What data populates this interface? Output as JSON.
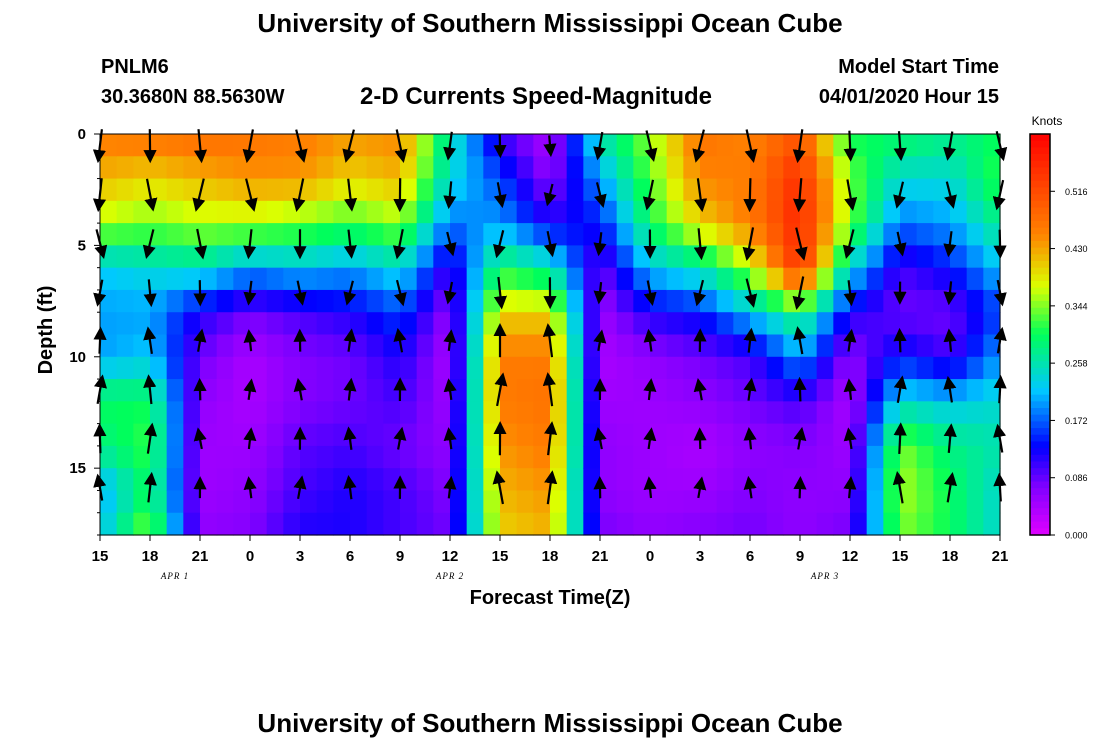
{
  "header": {
    "title": "University of Southern Mississippi Ocean Cube",
    "station_id": "PNLM6",
    "coordinates": "30.3680N 88.5630W",
    "plot_title": "2-D Currents Speed-Magnitude",
    "model_label": "Model Start Time",
    "model_time": "04/01/2020 Hour 15"
  },
  "footer": {
    "title": "University of Southern Mississippi Ocean Cube"
  },
  "chart_data": {
    "type": "heatmap",
    "title": "2-D Currents Speed-Magnitude",
    "xlabel": "Forecast Time(Z)",
    "ylabel": "Depth (ft)",
    "x_tick_labels": [
      "15",
      "18",
      "21",
      "0",
      "3",
      "6",
      "9",
      "12",
      "15",
      "18",
      "21",
      "0",
      "3",
      "6",
      "9",
      "12",
      "15",
      "18",
      "21"
    ],
    "x_range_hours": [
      0,
      54
    ],
    "date_labels": [
      {
        "label": "APR 1",
        "hour": 4.5
      },
      {
        "label": "APR 2",
        "hour": 21
      },
      {
        "label": "APR 3",
        "hour": 43.5
      }
    ],
    "y_ticks": [
      0,
      5,
      10,
      15
    ],
    "ylim": [
      0,
      18
    ],
    "y_inverted": true,
    "colorbar": {
      "title": "Knots",
      "ticks": [
        "0.516",
        "0.430",
        "0.344",
        "0.258",
        "0.172",
        "0.086",
        "0.000"
      ],
      "min": 0.0,
      "max": 0.602
    },
    "grid": {
      "columns": 54,
      "rows": 18
    },
    "speed_anchors": {
      "hours": [
        0,
        3,
        6,
        9,
        12,
        15,
        18,
        21,
        24,
        27,
        30,
        33,
        36,
        39,
        42,
        45,
        48,
        51,
        54
      ],
      "depths_ft": [
        0,
        2,
        4,
        6,
        8,
        10,
        12,
        14,
        16,
        18
      ],
      "values_knots": [
        [
          0.46,
          0.42,
          0.36,
          0.22,
          0.2,
          0.2,
          0.3,
          0.28,
          0.2,
          0.22,
          0.26
        ],
        [
          0.47,
          0.4,
          0.34,
          0.24,
          0.2,
          0.22,
          0.3,
          0.32,
          0.3,
          0.35,
          0.33
        ],
        [
          0.48,
          0.42,
          0.36,
          0.25,
          0.12,
          0.08,
          0.06,
          0.05,
          0.05,
          0.06,
          0.06
        ],
        [
          0.47,
          0.44,
          0.36,
          0.2,
          0.08,
          0.04,
          0.04,
          0.05,
          0.06,
          0.07,
          0.08
        ],
        [
          0.46,
          0.44,
          0.34,
          0.22,
          0.1,
          0.07,
          0.07,
          0.09,
          0.1,
          0.12,
          0.12
        ],
        [
          0.44,
          0.4,
          0.32,
          0.2,
          0.12,
          0.08,
          0.08,
          0.1,
          0.12,
          0.12,
          0.1
        ],
        [
          0.45,
          0.42,
          0.35,
          0.24,
          0.16,
          0.12,
          0.1,
          0.08,
          0.1,
          0.1,
          0.09
        ],
        [
          0.26,
          0.24,
          0.18,
          0.1,
          0.06,
          0.04,
          0.05,
          0.06,
          0.07,
          0.08,
          0.08
        ],
        [
          0.1,
          0.16,
          0.2,
          0.3,
          0.4,
          0.46,
          0.46,
          0.44,
          0.42,
          0.4,
          0.38
        ],
        [
          0.04,
          0.06,
          0.12,
          0.26,
          0.4,
          0.46,
          0.47,
          0.46,
          0.44,
          0.42,
          0.4
        ],
        [
          0.26,
          0.2,
          0.14,
          0.08,
          0.05,
          0.04,
          0.05,
          0.06,
          0.06,
          0.08,
          0.08
        ],
        [
          0.35,
          0.33,
          0.3,
          0.22,
          0.12,
          0.06,
          0.05,
          0.05,
          0.05,
          0.06,
          0.06
        ],
        [
          0.47,
          0.45,
          0.4,
          0.26,
          0.14,
          0.08,
          0.06,
          0.04,
          0.05,
          0.07,
          0.08
        ],
        [
          0.45,
          0.46,
          0.46,
          0.36,
          0.22,
          0.1,
          0.08,
          0.06,
          0.07,
          0.08,
          0.09
        ],
        [
          0.5,
          0.55,
          0.56,
          0.55,
          0.3,
          0.2,
          0.1,
          0.07,
          0.06,
          0.06,
          0.08
        ],
        [
          0.3,
          0.34,
          0.34,
          0.24,
          0.12,
          0.06,
          0.04,
          0.05,
          0.06,
          0.08,
          0.1
        ],
        [
          0.3,
          0.24,
          0.18,
          0.1,
          0.08,
          0.14,
          0.24,
          0.34,
          0.36,
          0.34,
          0.3
        ],
        [
          0.28,
          0.24,
          0.2,
          0.14,
          0.08,
          0.1,
          0.22,
          0.28,
          0.3,
          0.3,
          0.28
        ],
        [
          0.3,
          0.32,
          0.28,
          0.22,
          0.16,
          0.2,
          0.24,
          0.26,
          0.24,
          0.24,
          0.22
        ]
      ]
    }
  }
}
